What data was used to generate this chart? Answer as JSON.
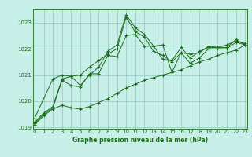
{
  "title": "Graphe pression niveau de la mer (hPa)",
  "background_color": "#c8eee8",
  "grid_color": "#90c8c0",
  "line_color": "#1a6b1a",
  "x_min": 0,
  "x_max": 23,
  "y_min": 1019,
  "y_max": 1023.5,
  "y_ticks": [
    1019,
    1020,
    1021,
    1022,
    1023
  ],
  "x_ticks": [
    0,
    1,
    2,
    3,
    4,
    5,
    6,
    7,
    8,
    9,
    10,
    11,
    12,
    13,
    14,
    15,
    16,
    17,
    18,
    19,
    20,
    21,
    22,
    23
  ],
  "series": [
    {
      "x": [
        0,
        1,
        2,
        3,
        4,
        5,
        6,
        7,
        8,
        9,
        10,
        11,
        12,
        13,
        14,
        15,
        16,
        17,
        18,
        19,
        20,
        21,
        22,
        23
      ],
      "y": [
        1019.2,
        1019.55,
        1019.8,
        1020.85,
        1020.95,
        1020.6,
        1021.0,
        1021.3,
        1021.9,
        1022.15,
        1023.3,
        1022.8,
        1022.55,
        1022.1,
        1022.15,
        1021.1,
        1021.85,
        1021.45,
        1021.65,
        1022.0,
        1022.0,
        1022.0,
        1022.25,
        1022.15
      ]
    },
    {
      "x": [
        0,
        1,
        2,
        3,
        4,
        5,
        6,
        7,
        8,
        9,
        10,
        11,
        12,
        13,
        14,
        15,
        16,
        17,
        18,
        19,
        20,
        21,
        22,
        23
      ],
      "y": [
        1019.15,
        1019.5,
        1019.75,
        1020.8,
        1020.6,
        1020.55,
        1021.05,
        1021.05,
        1021.75,
        1021.7,
        1022.5,
        1022.55,
        1022.1,
        1022.1,
        1021.6,
        1021.55,
        1022.05,
        1021.65,
        1021.9,
        1022.05,
        1022.05,
        1022.15,
        1022.3,
        1022.2
      ]
    },
    {
      "x": [
        0,
        2,
        3,
        4,
        5,
        6,
        7,
        8,
        9,
        10,
        11,
        12,
        13,
        14,
        15,
        16,
        17,
        18,
        19,
        20,
        21,
        22,
        23
      ],
      "y": [
        1019.35,
        1020.85,
        1021.0,
        1020.95,
        1021.0,
        1021.3,
        1021.55,
        1021.8,
        1022.0,
        1023.2,
        1022.65,
        1022.45,
        1021.9,
        1021.75,
        1021.5,
        1021.85,
        1021.8,
        1021.85,
        1022.1,
        1022.05,
        1022.05,
        1022.35,
        1022.15
      ]
    },
    {
      "x": [
        0,
        1,
        2,
        3,
        4,
        5,
        6,
        7,
        8,
        9,
        10,
        11,
        12,
        13,
        14,
        15,
        16,
        17,
        18,
        19,
        20,
        21,
        22,
        23
      ],
      "y": [
        1019.1,
        1019.45,
        1019.7,
        1019.85,
        1019.75,
        1019.7,
        1019.8,
        1019.95,
        1020.1,
        1020.3,
        1020.5,
        1020.65,
        1020.8,
        1020.9,
        1021.0,
        1021.1,
        1021.2,
        1021.35,
        1021.5,
        1021.6,
        1021.75,
        1021.85,
        1021.95,
        1022.15
      ]
    }
  ],
  "tick_fontsize": 5.0,
  "label_fontsize": 5.5,
  "marker": "+",
  "markersize": 2.5,
  "linewidth": 0.7
}
